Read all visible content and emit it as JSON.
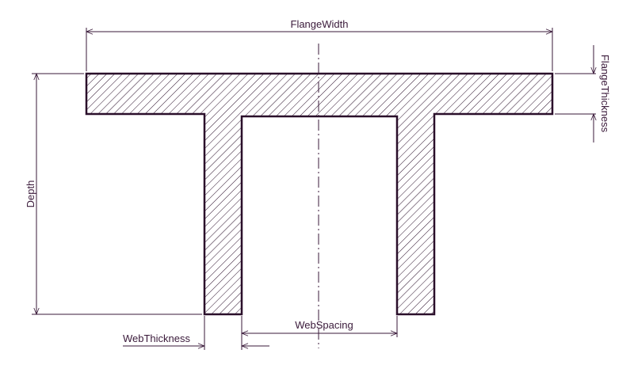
{
  "diagram": {
    "labels": {
      "flange_width": "FlangeWidth",
      "flange_thickness": "FlangeThickness",
      "depth": "Depth",
      "web_thickness": "WebThickness",
      "web_spacing": "WebSpacing"
    },
    "colors": {
      "line": "#3a1a3a",
      "outline": "#2a0f2a",
      "background": "#ffffff"
    }
  }
}
